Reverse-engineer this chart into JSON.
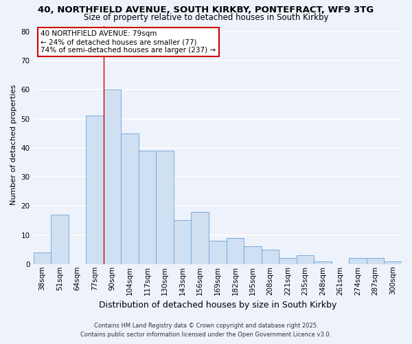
{
  "title": "40, NORTHFIELD AVENUE, SOUTH KIRKBY, PONTEFRACT, WF9 3TG",
  "subtitle": "Size of property relative to detached houses in South Kirkby",
  "xlabel": "Distribution of detached houses by size in South Kirkby",
  "ylabel": "Number of detached properties",
  "categories": [
    "38sqm",
    "51sqm",
    "64sqm",
    "77sqm",
    "90sqm",
    "104sqm",
    "117sqm",
    "130sqm",
    "143sqm",
    "156sqm",
    "169sqm",
    "182sqm",
    "195sqm",
    "208sqm",
    "221sqm",
    "235sqm",
    "248sqm",
    "261sqm",
    "274sqm",
    "287sqm",
    "300sqm"
  ],
  "values": [
    4,
    17,
    0,
    51,
    60,
    45,
    39,
    39,
    15,
    18,
    8,
    9,
    6,
    5,
    2,
    3,
    1,
    0,
    2,
    2,
    1
  ],
  "bar_color": "#cfe0f2",
  "bar_edge_color": "#7aabda",
  "background_color": "#eef2fb",
  "grid_color": "#ffffff",
  "annotation_text": "40 NORTHFIELD AVENUE: 79sqm\n← 24% of detached houses are smaller (77)\n74% of semi-detached houses are larger (237) →",
  "annotation_box_facecolor": "#ffffff",
  "annotation_box_edgecolor": "#cc0000",
  "property_vline_x": 3,
  "property_vline_color": "#cc0000",
  "ylim": [
    0,
    82
  ],
  "yticks": [
    0,
    10,
    20,
    30,
    40,
    50,
    60,
    70,
    80
  ],
  "footer_line1": "Contains HM Land Registry data © Crown copyright and database right 2025.",
  "footer_line2": "Contains public sector information licensed under the Open Government Licence v3.0.",
  "title_fontsize": 9.5,
  "subtitle_fontsize": 8.5,
  "xlabel_fontsize": 9,
  "ylabel_fontsize": 8,
  "tick_fontsize": 7.5,
  "footer_fontsize": 6,
  "annot_fontsize": 7.5
}
